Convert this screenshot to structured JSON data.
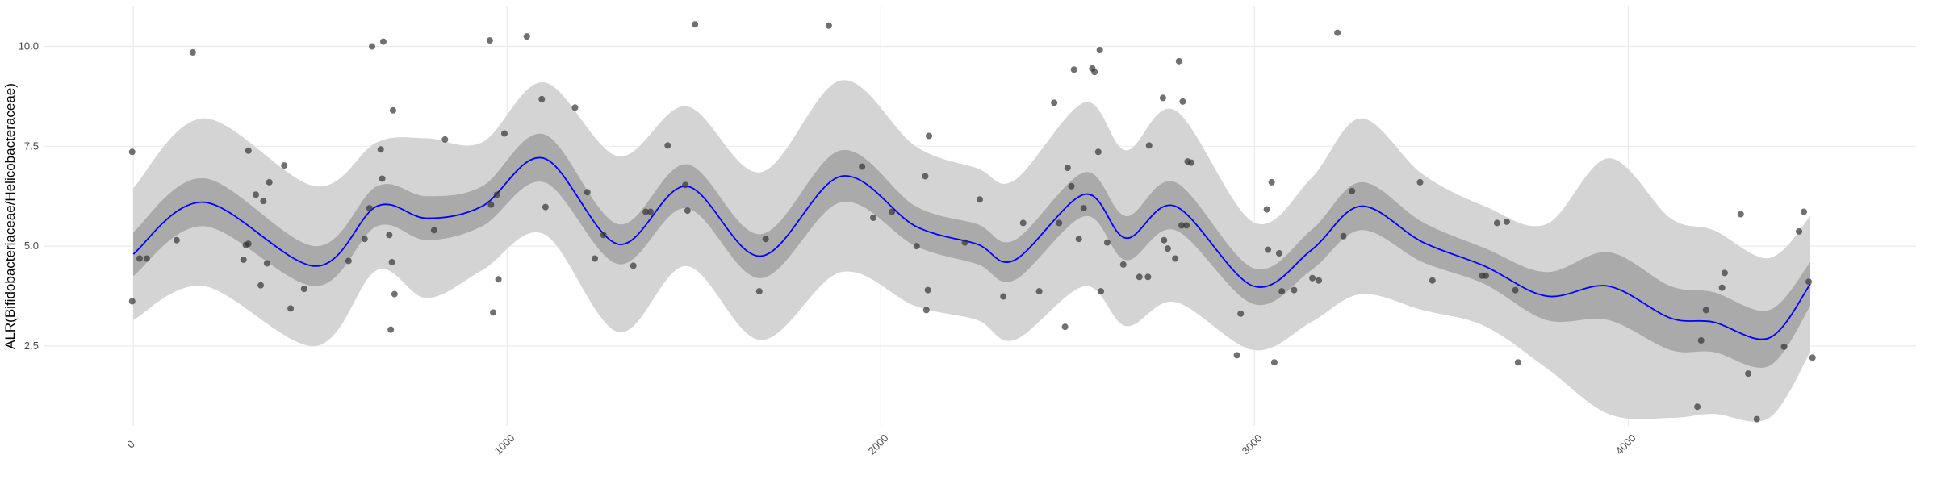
{
  "chart_data": {
    "type": "scatter",
    "ylabel": "ALR(Bifidobacteriaceae/Helicobacteraceae)",
    "xlim": [
      -240,
      4770
    ],
    "ylim": [
      0.5,
      11.0
    ],
    "xticks": [
      0,
      1000,
      2000,
      3000,
      4000
    ],
    "yticks": [
      2.5,
      {
        "value": 5,
        "label": "5.0"
      },
      7.5,
      {
        "value": 10,
        "label": "10.0"
      }
    ],
    "grid": true,
    "points": {
      "color": "#333333",
      "x": [
        -3,
        -3,
        17,
        36,
        116,
        159,
        295,
        301,
        308,
        308,
        328,
        341,
        348,
        358,
        364,
        404,
        421,
        457,
        576,
        619,
        632,
        639,
        662,
        666,
        669,
        685,
        689,
        692,
        695,
        699,
        805,
        834,
        954,
        957,
        963,
        973,
        977,
        993,
        1053,
        1093,
        1103,
        1182,
        1215,
        1235,
        1258,
        1338,
        1371,
        1384,
        1430,
        1477,
        1483,
        1503,
        1675,
        1692,
        1861,
        1950,
        1980,
        2030,
        2096,
        2119,
        2122,
        2126,
        2129,
        2225,
        2265,
        2328,
        2381,
        2424,
        2464,
        2477,
        2493,
        2500,
        2510,
        2517,
        2530,
        2543,
        2566,
        2572,
        2582,
        2586,
        2589,
        2606,
        2649,
        2692,
        2715,
        2718,
        2755,
        2758,
        2768,
        2788,
        2798,
        2805,
        2808,
        2818,
        2821,
        2831,
        2953,
        2963,
        3033,
        3036,
        3046,
        3053,
        3066,
        3073,
        3106,
        3155,
        3172,
        3222,
        3238,
        3261,
        3443,
        3476,
        3609,
        3619,
        3649,
        3675,
        3698,
        3705,
        4185,
        4195,
        4208,
        4251,
        4258,
        4301,
        4321,
        4344,
        4417,
        4457,
        4470,
        4483,
        4493
      ],
      "y": [
        7.36,
        3.62,
        4.69,
        4.69,
        5.15,
        9.85,
        4.66,
        5.03,
        7.39,
        5.06,
        6.29,
        4.02,
        6.13,
        4.57,
        6.6,
        7.02,
        3.44,
        3.93,
        4.63,
        5.18,
        5.95,
        10.0,
        7.42,
        6.69,
        10.12,
        5.28,
        2.91,
        4.6,
        8.4,
        3.8,
        5.4,
        7.67,
        10.15,
        6.04,
        3.34,
        6.29,
        4.17,
        7.82,
        10.25,
        8.68,
        5.98,
        8.47,
        6.35,
        4.69,
        5.28,
        4.51,
        5.86,
        5.86,
        7.52,
        6.53,
        5.89,
        10.55,
        3.87,
        5.18,
        10.52,
        6.99,
        5.71,
        5.86,
        5.0,
        6.75,
        3.4,
        3.9,
        7.76,
        5.09,
        6.17,
        3.74,
        5.58,
        3.87,
        8.59,
        5.58,
        2.98,
        6.96,
        6.5,
        9.42,
        5.18,
        5.95,
        9.45,
        9.36,
        7.36,
        9.91,
        3.87,
        5.09,
        4.54,
        4.23,
        4.23,
        7.52,
        8.71,
        5.15,
        4.94,
        4.69,
        9.63,
        5.52,
        8.62,
        5.52,
        7.12,
        7.09,
        2.27,
        3.31,
        5.92,
        4.91,
        6.6,
        2.09,
        4.82,
        3.87,
        3.9,
        4.2,
        4.14,
        10.34,
        5.25,
        6.38,
        6.6,
        4.14,
        4.26,
        4.26,
        5.58,
        5.61,
        3.9,
        2.09,
        0.98,
        2.64,
        3.4,
        3.96,
        4.33,
        5.8,
        1.81,
        0.67,
        2.48,
        5.37,
        5.86,
        4.11,
        2.21
      ]
    },
    "smooth": {
      "color": "#0000ff",
      "x": [
        0,
        189,
        487,
        652,
        785,
        934,
        1099,
        1298,
        1480,
        1679,
        1894,
        2093,
        2258,
        2358,
        2546,
        2656,
        2788,
        2997,
        3152,
        3285,
        3450,
        3616,
        3781,
        3947,
        4113,
        4228,
        4377,
        4487
      ],
      "values": [
        4.8,
        6.1,
        4.5,
        6.0,
        5.7,
        6.0,
        7.2,
        5.05,
        6.5,
        4.75,
        6.75,
        5.5,
        5.05,
        4.65,
        6.3,
        5.2,
        6.0,
        4.0,
        4.9,
        6.0,
        5.1,
        4.5,
        3.75,
        4.0,
        3.2,
        3.1,
        2.7,
        4.05
      ]
    },
    "inner_band": {
      "color": "#aaaaaa",
      "lower": [
        4.25,
        5.5,
        4.0,
        5.5,
        5.15,
        5.5,
        6.6,
        4.55,
        5.95,
        4.2,
        6.1,
        5.0,
        4.55,
        4.15,
        5.75,
        4.65,
        5.4,
        3.55,
        4.4,
        5.4,
        4.6,
        4.05,
        3.15,
        3.15,
        2.4,
        2.35,
        2.0,
        3.5
      ],
      "upper": [
        5.35,
        6.7,
        5.0,
        6.5,
        6.25,
        6.5,
        7.8,
        5.55,
        7.05,
        5.3,
        7.4,
        6.0,
        5.55,
        5.15,
        6.85,
        5.75,
        6.6,
        4.45,
        5.4,
        6.6,
        5.6,
        4.95,
        4.35,
        4.85,
        4.0,
        3.85,
        3.4,
        4.6
      ]
    },
    "outer_band": {
      "color": "#d4d4d4",
      "lower": [
        3.15,
        4.0,
        2.5,
        4.4,
        3.7,
        4.4,
        5.3,
        2.85,
        4.5,
        2.65,
        4.35,
        3.5,
        3.15,
        2.65,
        4.0,
        3.0,
        3.6,
        2.4,
        3.1,
        3.8,
        3.4,
        3.0,
        1.95,
        0.8,
        0.7,
        0.8,
        0.7,
        2.35
      ],
      "upper": [
        6.45,
        8.2,
        6.5,
        7.6,
        7.7,
        7.6,
        9.1,
        7.25,
        8.5,
        6.85,
        9.15,
        7.5,
        6.95,
        6.65,
        8.6,
        7.4,
        8.4,
        5.6,
        6.7,
        8.2,
        6.8,
        6.0,
        5.55,
        7.2,
        5.7,
        5.4,
        4.7,
        5.75
      ]
    }
  }
}
